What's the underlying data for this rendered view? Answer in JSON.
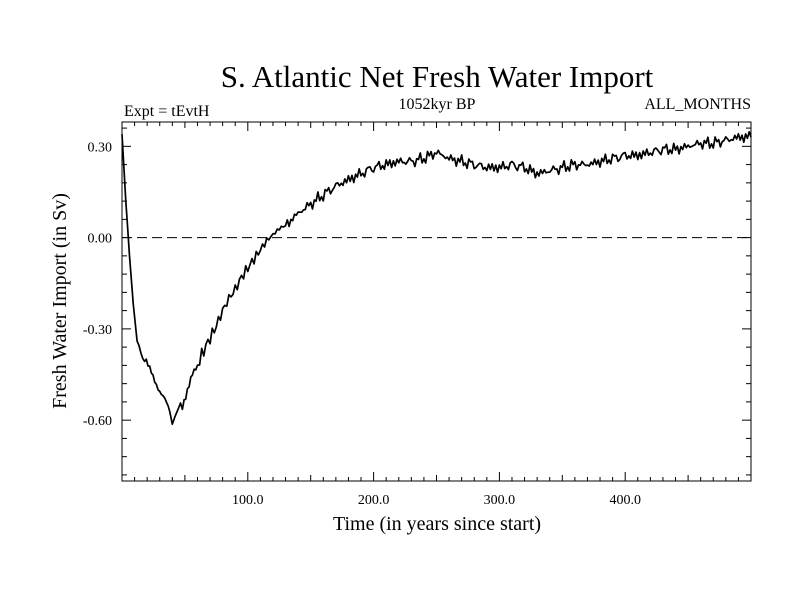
{
  "chart_data": {
    "type": "line",
    "title": "S. Atlantic Net Fresh Water Import",
    "subtitle_left": "Expt = tEvtH",
    "subtitle_center": "1052kyr BP",
    "subtitle_right": "ALL_MONTHS",
    "xlabel": "Time (in years since start)",
    "ylabel": "Fresh Water Import (in Sv)",
    "xlim": [
      0,
      500
    ],
    "ylim": [
      -0.8,
      0.38
    ],
    "x_ticks": [
      {
        "value": 100,
        "label": "100.0"
      },
      {
        "value": 200,
        "label": "200.0"
      },
      {
        "value": 300,
        "label": "300.0"
      },
      {
        "value": 400,
        "label": "400.0"
      }
    ],
    "y_ticks": [
      {
        "value": 0.3,
        "label": "0.30"
      },
      {
        "value": 0.0,
        "label": "0.00"
      },
      {
        "value": -0.3,
        "label": "-0.30"
      },
      {
        "value": -0.6,
        "label": "-0.60"
      }
    ],
    "reference_line": {
      "y": 0.0,
      "style": "dashed"
    },
    "series": [
      {
        "name": "Net Fresh Water Import",
        "x": [
          0,
          3,
          6,
          9,
          12,
          15,
          18,
          22,
          26,
          30,
          34,
          38,
          40,
          42,
          45,
          48,
          52,
          56,
          60,
          65,
          70,
          75,
          80,
          85,
          90,
          95,
          100,
          105,
          110,
          115,
          120,
          125,
          130,
          140,
          150,
          160,
          170,
          180,
          190,
          200,
          210,
          220,
          230,
          240,
          250,
          260,
          270,
          280,
          290,
          300,
          310,
          320,
          330,
          340,
          350,
          360,
          370,
          380,
          390,
          400,
          410,
          420,
          430,
          440,
          450,
          460,
          470,
          480,
          490,
          500
        ],
        "y": [
          0.34,
          0.12,
          -0.06,
          -0.22,
          -0.34,
          -0.38,
          -0.4,
          -0.44,
          -0.47,
          -0.5,
          -0.53,
          -0.57,
          -0.61,
          -0.59,
          -0.56,
          -0.55,
          -0.5,
          -0.45,
          -0.42,
          -0.37,
          -0.33,
          -0.29,
          -0.24,
          -0.2,
          -0.17,
          -0.13,
          -0.1,
          -0.07,
          -0.04,
          -0.01,
          0.01,
          0.03,
          0.04,
          0.08,
          0.11,
          0.14,
          0.17,
          0.19,
          0.21,
          0.23,
          0.24,
          0.25,
          0.25,
          0.26,
          0.28,
          0.26,
          0.25,
          0.24,
          0.23,
          0.23,
          0.24,
          0.23,
          0.21,
          0.22,
          0.23,
          0.24,
          0.24,
          0.25,
          0.26,
          0.27,
          0.27,
          0.28,
          0.29,
          0.29,
          0.3,
          0.31,
          0.31,
          0.32,
          0.33,
          0.33
        ]
      }
    ]
  }
}
